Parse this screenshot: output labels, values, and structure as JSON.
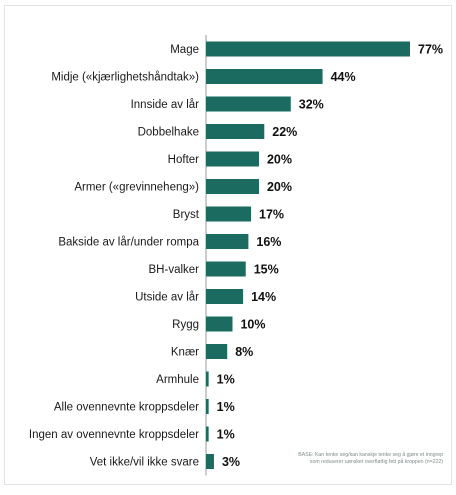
{
  "chart_data": {
    "type": "bar",
    "orientation": "horizontal",
    "categories": [
      "Mage",
      "Midje («kjærlighetshåndtak»)",
      "Innside av lår",
      "Dobbelhake",
      "Hofter",
      "Armer («grevinneheng»)",
      "Bryst",
      "Bakside av lår/under rompa",
      "BH-valker",
      "Utside av lår",
      "Rygg",
      "Knær",
      "Armhule",
      "Alle ovennevnte kroppsdeler",
      "Ingen av ovennevnte kroppsdeler",
      "Vet ikke/vil ikke svare"
    ],
    "values": [
      77,
      44,
      32,
      22,
      20,
      20,
      17,
      16,
      15,
      14,
      10,
      8,
      1,
      1,
      1,
      3
    ],
    "value_labels": [
      "77%",
      "44%",
      "32%",
      "22%",
      "20%",
      "20%",
      "17%",
      "16%",
      "15%",
      "14%",
      "10%",
      "8%",
      "1%",
      "1%",
      "1%",
      "3%"
    ],
    "xlim": [
      0,
      80
    ],
    "bar_color": "#1b6b61",
    "axis_color": "#999999",
    "grid": false
  },
  "footnote": "BASE: Kan tenke seg/kan kanskje tenke seg å gjøre et inngrep som reduserer uønsket overflødig fett på kroppen (n=222)"
}
